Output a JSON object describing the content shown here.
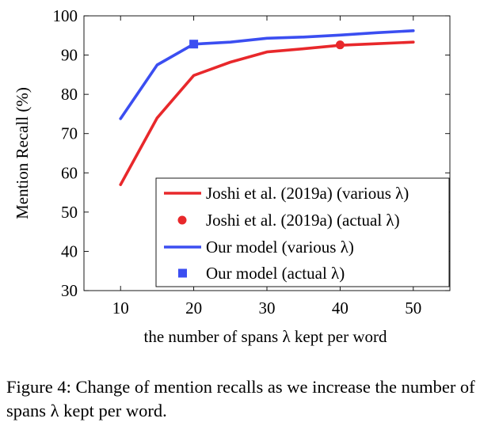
{
  "chart_data": {
    "type": "line",
    "xlabel": "the number of spans λ kept per word",
    "ylabel": "Mention Recall (%)",
    "xlim": [
      5,
      55
    ],
    "ylim": [
      30,
      100
    ],
    "x_ticks": [
      10,
      20,
      30,
      40,
      50
    ],
    "y_ticks": [
      30,
      40,
      50,
      60,
      70,
      80,
      90,
      100
    ],
    "grid": false,
    "legend_position": "bottom-right",
    "series": [
      {
        "name": "Joshi et al. (2019a) (various λ)",
        "kind": "line",
        "color": "#e8282b",
        "x": [
          10,
          15,
          20,
          25,
          30,
          35,
          40,
          45,
          50
        ],
        "y": [
          57,
          74,
          84.8,
          88.2,
          90.8,
          91.6,
          92.5,
          92.9,
          93.3
        ]
      },
      {
        "name": "Joshi et al. (2019a) (actual λ)",
        "kind": "marker",
        "marker": "circle",
        "color": "#e8282b",
        "x": [
          40
        ],
        "y": [
          92.6
        ]
      },
      {
        "name": "Our model (various λ)",
        "kind": "line",
        "color": "#3b4ef1",
        "x": [
          10,
          15,
          20,
          25,
          30,
          35,
          40,
          45,
          50
        ],
        "y": [
          73.8,
          87.5,
          92.8,
          93.3,
          94.3,
          94.6,
          95.1,
          95.7,
          96.2
        ]
      },
      {
        "name": "Our model (actual λ)",
        "kind": "marker",
        "marker": "square",
        "color": "#3b4ef1",
        "x": [
          20
        ],
        "y": [
          92.8
        ]
      }
    ]
  },
  "caption": "Figure 4: Change of mention recalls as we increase the number of spans λ kept per word."
}
